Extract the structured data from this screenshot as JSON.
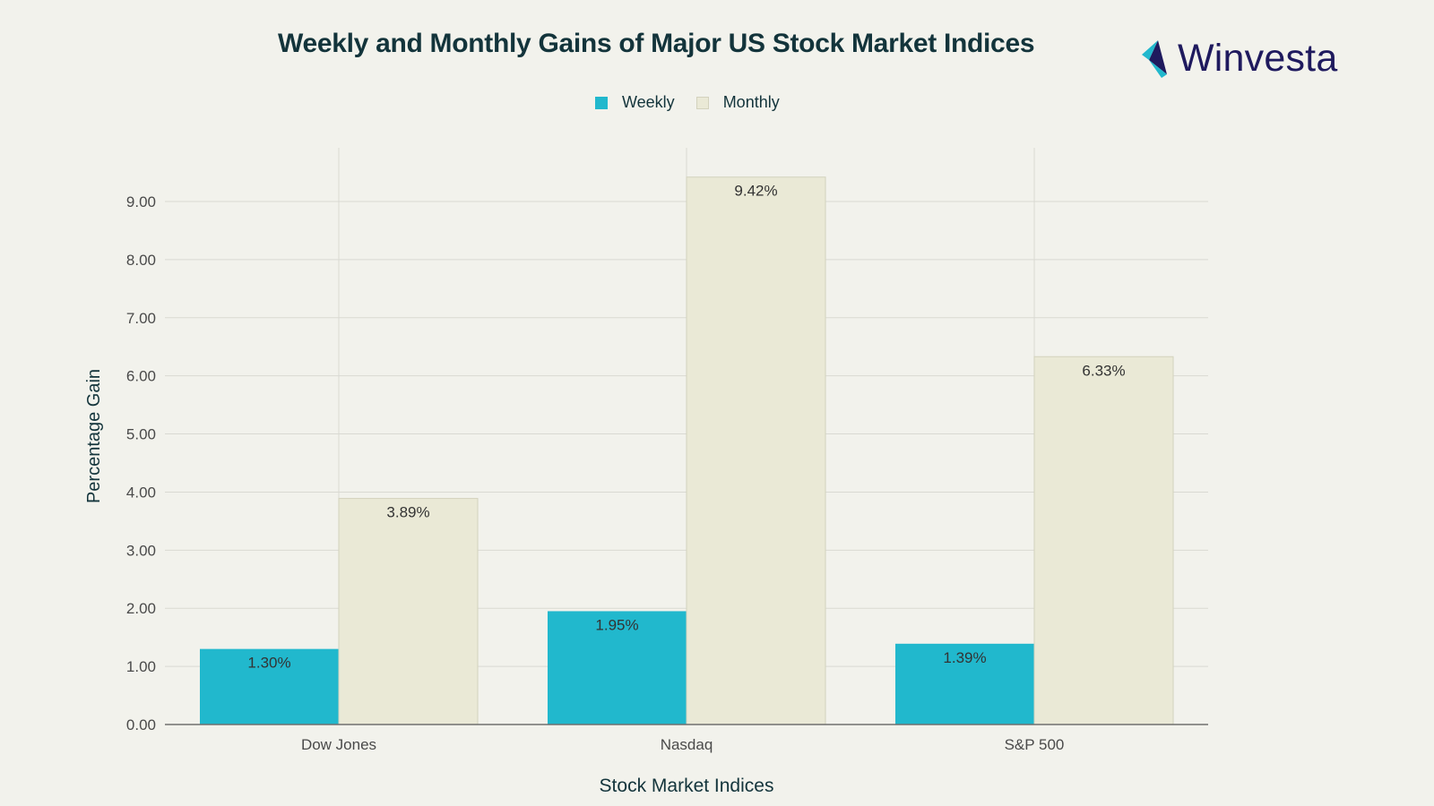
{
  "title": "Weekly and Monthly Gains of Major US Stock Market Indices",
  "brand": {
    "name": "Winvesta",
    "logo_icon": "winvesta-logo-icon"
  },
  "colors": {
    "weekly": "#21b8cd",
    "monthly": "#eae9d6",
    "monthly_border": "#d3d2bd",
    "grid": "#d9d9d2",
    "axis": "#6f6f6f",
    "text": "#13343b"
  },
  "chart_data": {
    "type": "bar",
    "categories": [
      "Dow Jones",
      "Nasdaq",
      "S&P 500"
    ],
    "series": [
      {
        "name": "Weekly",
        "values": [
          1.3,
          1.95,
          1.39
        ],
        "labels": [
          "1.30%",
          "1.95%",
          "1.39%"
        ]
      },
      {
        "name": "Monthly",
        "values": [
          3.89,
          9.42,
          6.33
        ],
        "labels": [
          "3.89%",
          "9.42%",
          "6.33%"
        ]
      }
    ],
    "xlabel": "Stock Market Indices",
    "ylabel": "Percentage Gain",
    "ylim": [
      0,
      9.0
    ],
    "yticks": [
      "0.00",
      "1.00",
      "2.00",
      "3.00",
      "4.00",
      "5.00",
      "6.00",
      "7.00",
      "8.00",
      "9.00"
    ],
    "grid": true,
    "legend_position": "top-center"
  }
}
